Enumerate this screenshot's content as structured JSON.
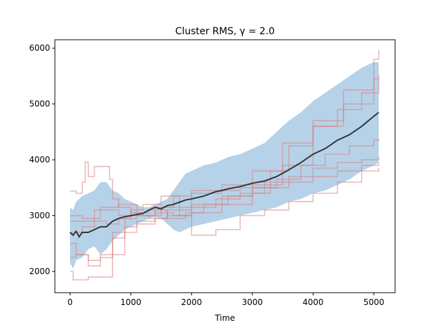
{
  "chart_data": {
    "type": "line",
    "title": "Cluster RMS, γ = 2.0",
    "xlabel": "Time",
    "ylabel": "",
    "xlim": [
      -250,
      5350
    ],
    "ylim": [
      1620,
      6150
    ],
    "xticks": [
      0,
      1000,
      2000,
      3000,
      4000,
      5000
    ],
    "yticks": [
      2000,
      3000,
      4000,
      5000,
      6000
    ],
    "grid": false,
    "colors": {
      "band": "#9ec3e0",
      "mean": "#333333",
      "runs": "#d98080"
    },
    "band": {
      "name": "",
      "x": [
        0,
        50,
        100,
        200,
        300,
        400,
        500,
        600,
        700,
        800,
        900,
        1000,
        1100,
        1200,
        1300,
        1400,
        1500,
        1600,
        1700,
        1800,
        1900,
        2000,
        2200,
        2400,
        2600,
        2800,
        3000,
        3200,
        3400,
        3600,
        3800,
        4000,
        4200,
        4400,
        4600,
        4800,
        5000,
        5080
      ],
      "lower": [
        2150,
        2050,
        2200,
        2250,
        2400,
        2450,
        2300,
        2400,
        2550,
        2650,
        2750,
        2800,
        2850,
        2900,
        2950,
        2980,
        2950,
        2850,
        2750,
        2700,
        2750,
        2800,
        2850,
        2900,
        2950,
        3000,
        3050,
        3100,
        3150,
        3250,
        3300,
        3400,
        3450,
        3550,
        3650,
        3800,
        3900,
        3950
      ],
      "upper": [
        3150,
        3100,
        3250,
        3350,
        3400,
        3450,
        3600,
        3600,
        3450,
        3400,
        3300,
        3250,
        3200,
        3150,
        3150,
        3200,
        3250,
        3300,
        3450,
        3600,
        3750,
        3800,
        3900,
        3950,
        4050,
        4100,
        4200,
        4300,
        4500,
        4700,
        4850,
        5050,
        5200,
        5350,
        5500,
        5650,
        5750,
        5750
      ]
    },
    "mean": {
      "name": "",
      "x": [
        0,
        50,
        100,
        150,
        200,
        300,
        400,
        500,
        600,
        700,
        800,
        900,
        1000,
        1100,
        1200,
        1300,
        1400,
        1500,
        1600,
        1700,
        1800,
        1900,
        2000,
        2200,
        2400,
        2500,
        2600,
        2800,
        3000,
        3200,
        3400,
        3600,
        3800,
        4000,
        4200,
        4400,
        4600,
        4800,
        5000,
        5080
      ],
      "y": [
        2700,
        2650,
        2720,
        2620,
        2700,
        2700,
        2750,
        2800,
        2800,
        2900,
        2950,
        2980,
        3000,
        3020,
        3040,
        3100,
        3150,
        3120,
        3180,
        3200,
        3240,
        3280,
        3300,
        3350,
        3430,
        3450,
        3480,
        3520,
        3580,
        3620,
        3700,
        3820,
        3950,
        4100,
        4200,
        4350,
        4450,
        4600,
        4780,
        4850
      ]
    },
    "runs": [
      {
        "x": [
          0,
          100,
          200,
          250,
          300,
          400,
          550,
          650,
          700,
          800,
          1000,
          1200,
          1500,
          2000,
          2500,
          3000,
          3500,
          4000,
          4500,
          5000,
          5080
        ],
        "y": [
          3440,
          3400,
          3600,
          3960,
          3700,
          3880,
          3880,
          3650,
          3300,
          3150,
          3050,
          3000,
          3150,
          3400,
          3550,
          3800,
          4300,
          4700,
          5250,
          5800,
          5960
        ]
      },
      {
        "x": [
          0,
          50,
          100,
          300,
          500,
          700,
          900,
          1100,
          1400,
          1600,
          2000,
          2500,
          3000,
          3500,
          4000,
          4500,
          5000,
          5080
        ],
        "y": [
          2000,
          1850,
          1850,
          1900,
          1900,
          2300,
          2700,
          2850,
          2950,
          3000,
          3200,
          3350,
          3550,
          3900,
          4600,
          5000,
          5450,
          5520
        ]
      },
      {
        "x": [
          0,
          200,
          400,
          600,
          800,
          1000,
          1200,
          1500,
          1800,
          2000,
          2400,
          2800,
          3200,
          3600,
          4000,
          4400,
          4800,
          5080
        ],
        "y": [
          2900,
          2900,
          3100,
          3100,
          3000,
          3100,
          3200,
          3350,
          3000,
          2650,
          2750,
          3000,
          3100,
          3250,
          3400,
          3600,
          3800,
          3850
        ]
      },
      {
        "x": [
          0,
          100,
          300,
          500,
          700,
          900,
          1100,
          1400,
          1700,
          2000,
          2500,
          3000,
          3300,
          3600,
          4000,
          4400,
          4800,
          5080
        ],
        "y": [
          2250,
          2300,
          2100,
          2300,
          2600,
          2800,
          2900,
          3050,
          3000,
          3050,
          3200,
          3400,
          3800,
          4250,
          4600,
          4900,
          5200,
          5450
        ]
      },
      {
        "x": [
          0,
          200,
          400,
          600,
          800,
          1000,
          1300,
          1600,
          1900,
          2200,
          2600,
          3000,
          3400,
          3800,
          4200,
          4600,
          5000,
          5080
        ],
        "y": [
          2700,
          2800,
          2900,
          2850,
          2950,
          3050,
          3100,
          2950,
          3050,
          3200,
          3350,
          3500,
          3650,
          3900,
          4100,
          4250,
          4350,
          4380
        ]
      },
      {
        "x": [
          0,
          100,
          300,
          500,
          700,
          900,
          1100,
          1300,
          1600,
          2000,
          2400,
          2800,
          3200,
          3600,
          4000,
          4400,
          4800,
          5080
        ],
        "y": [
          2500,
          2300,
          2200,
          2250,
          2700,
          2950,
          3000,
          2950,
          3100,
          3150,
          3300,
          3400,
          3500,
          3600,
          3700,
          3800,
          3900,
          3950
        ]
      },
      {
        "x": [
          0,
          200,
          500,
          800,
          1100,
          1400,
          1700,
          2000,
          2400,
          2800,
          3200,
          3600,
          4000,
          4400,
          4800,
          5080
        ],
        "y": [
          3000,
          2950,
          3150,
          3200,
          3000,
          3150,
          3350,
          3450,
          3450,
          3500,
          3600,
          3700,
          3850,
          3950,
          4000,
          4050
        ]
      }
    ]
  }
}
